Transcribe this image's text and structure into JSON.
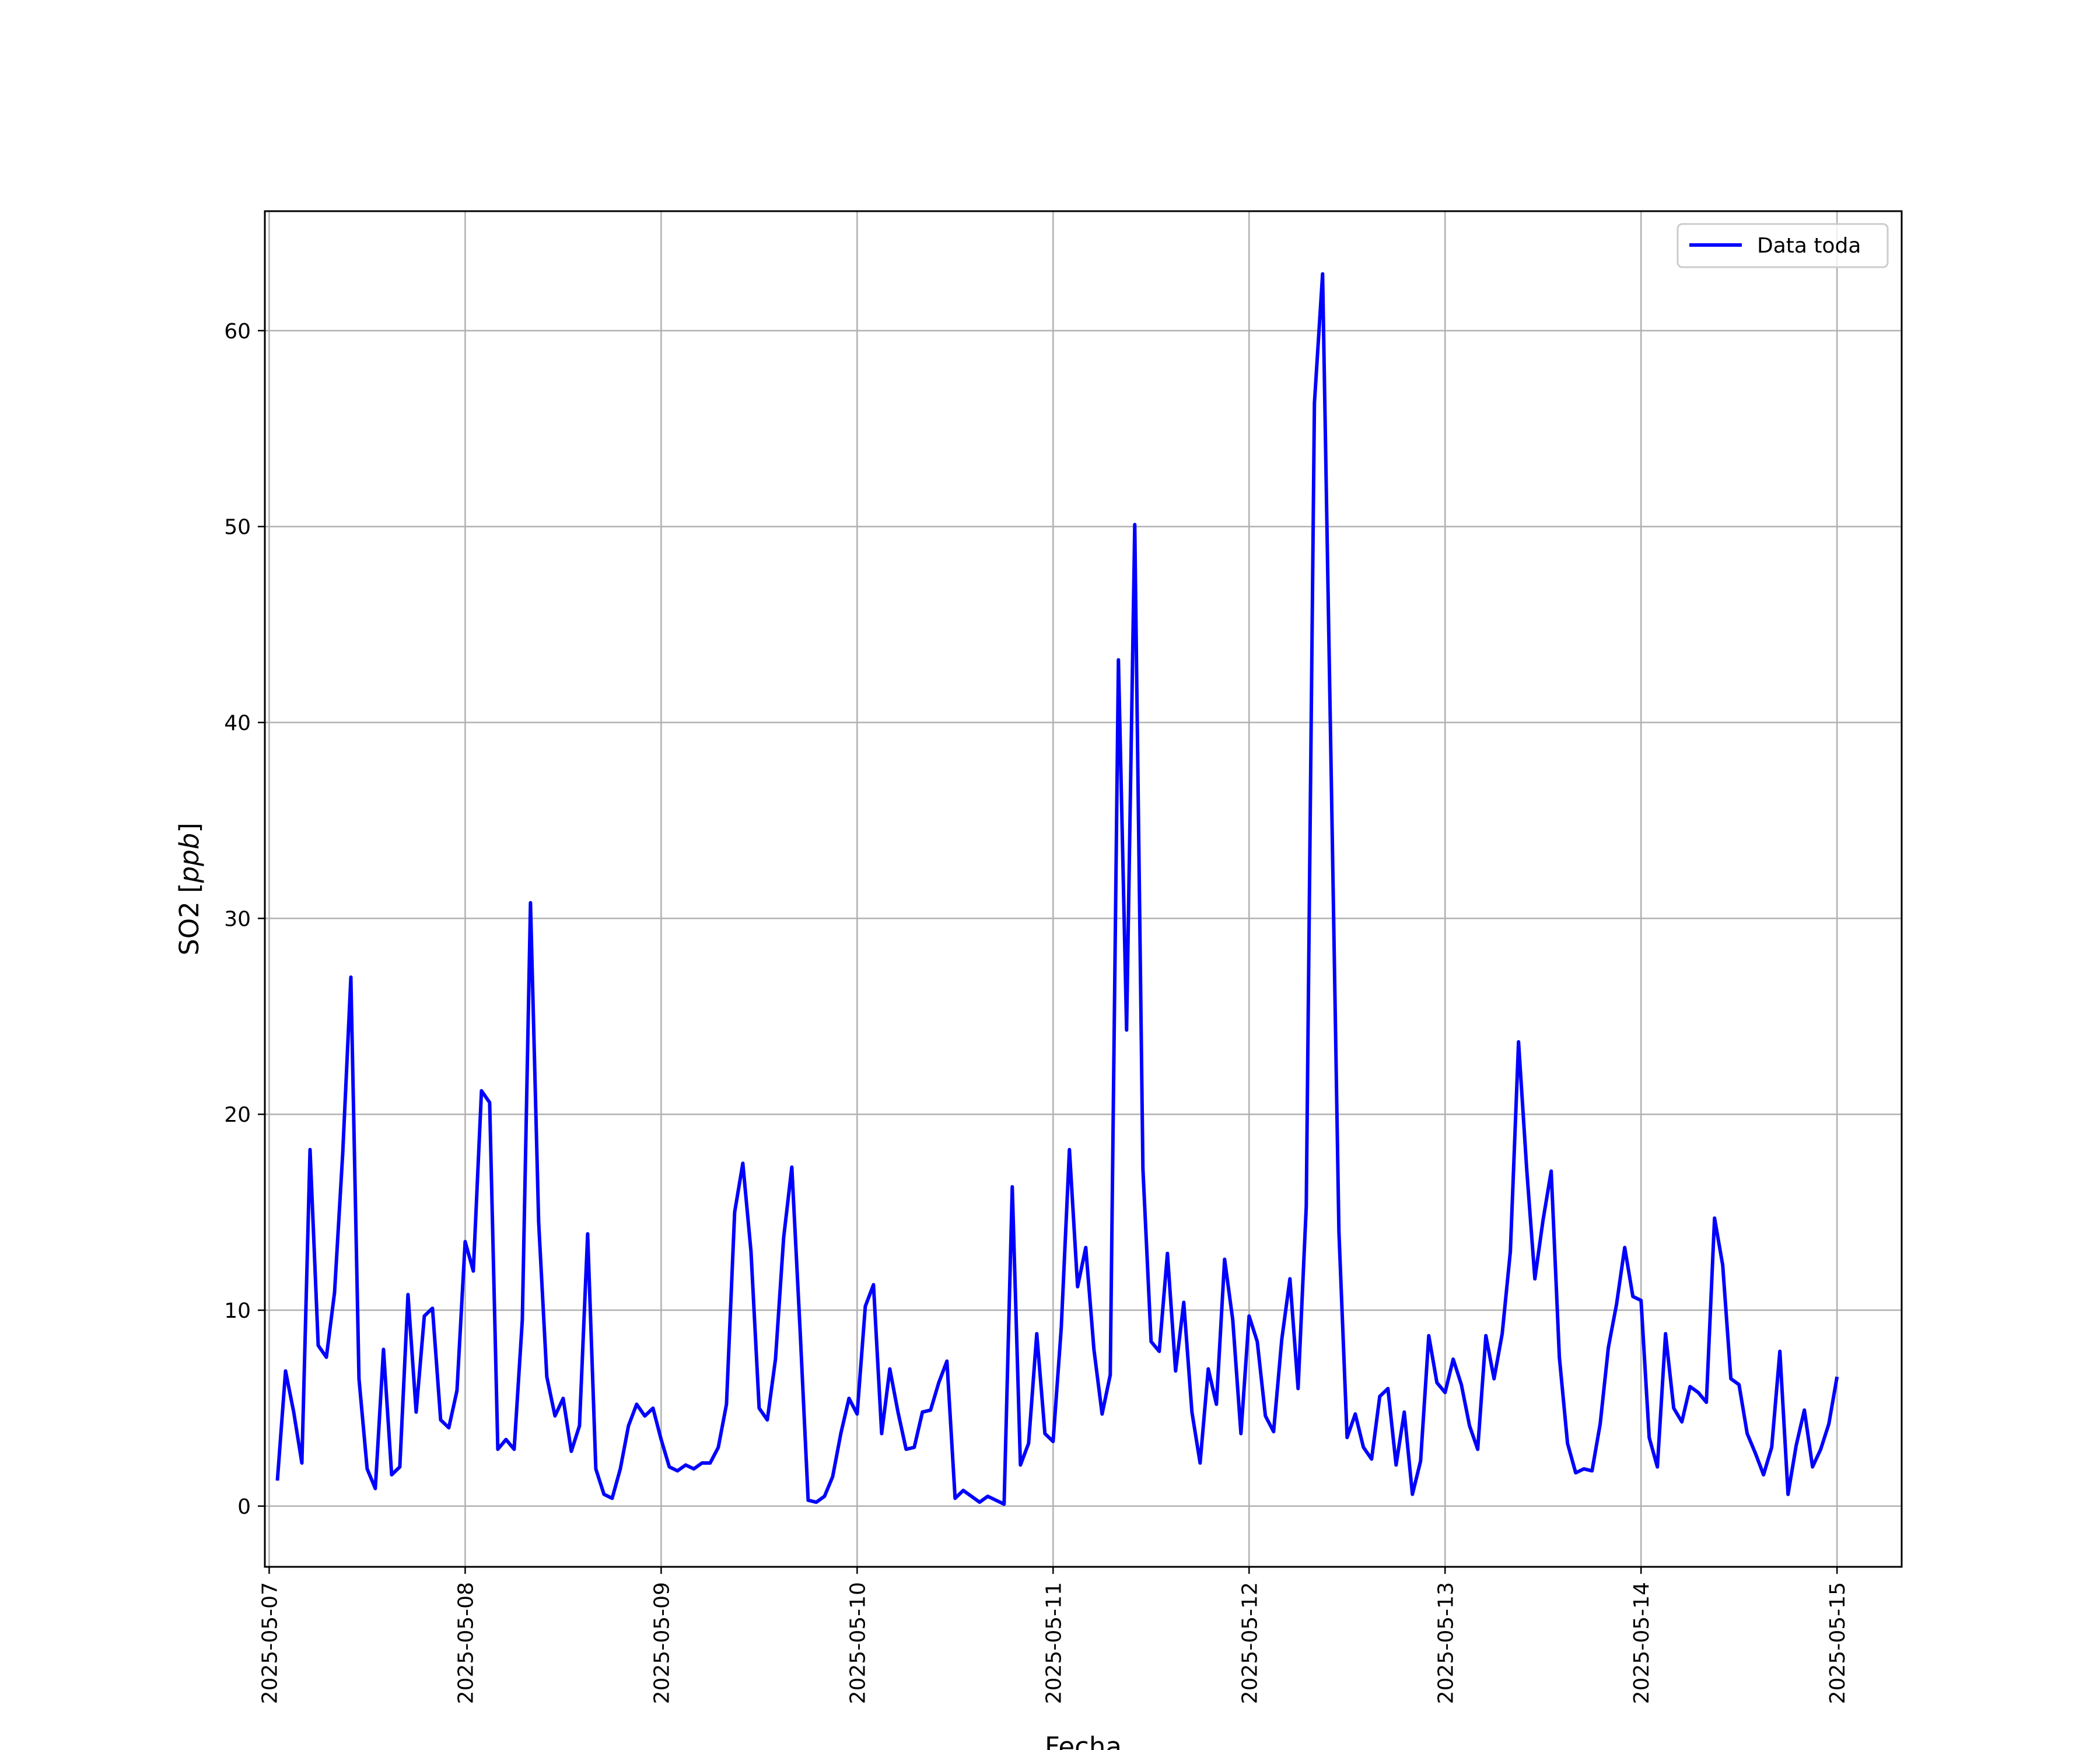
{
  "chart_data": {
    "type": "line",
    "xlabel": "Fecha",
    "ylabel": "SO2 [ppb]",
    "ylabel_parts": {
      "base": "SO2 [",
      "unit": "ppb",
      "close": "]"
    },
    "x_range": [
      "2025-05-06T23:28",
      "2025-05-15T07:55"
    ],
    "y_range": [
      -3.1,
      66.1
    ],
    "x_ticks": [
      "2025-05-07",
      "2025-05-08",
      "2025-05-09",
      "2025-05-10",
      "2025-05-11",
      "2025-05-12",
      "2025-05-13",
      "2025-05-14",
      "2025-05-15"
    ],
    "y_ticks": [
      0,
      10,
      20,
      30,
      40,
      50,
      60
    ],
    "grid": true,
    "legend_position": "upper right",
    "series": [
      {
        "name": "Data toda",
        "color": "#0000ff",
        "x": [
          "2025-05-07 01:00",
          "2025-05-07 02:00",
          "2025-05-07 03:00",
          "2025-05-07 04:00",
          "2025-05-07 05:00",
          "2025-05-07 06:00",
          "2025-05-07 07:00",
          "2025-05-07 08:00",
          "2025-05-07 09:00",
          "2025-05-07 10:00",
          "2025-05-07 11:00",
          "2025-05-07 12:00",
          "2025-05-07 13:00",
          "2025-05-07 14:00",
          "2025-05-07 15:00",
          "2025-05-07 16:00",
          "2025-05-07 17:00",
          "2025-05-07 18:00",
          "2025-05-07 19:00",
          "2025-05-07 20:00",
          "2025-05-07 21:00",
          "2025-05-07 22:00",
          "2025-05-07 23:00",
          "2025-05-08 00:00",
          "2025-05-08 01:00",
          "2025-05-08 02:00",
          "2025-05-08 03:00",
          "2025-05-08 04:00",
          "2025-05-08 05:00",
          "2025-05-08 06:00",
          "2025-05-08 07:00",
          "2025-05-08 08:00",
          "2025-05-08 09:00",
          "2025-05-08 10:00",
          "2025-05-08 11:00",
          "2025-05-08 12:00",
          "2025-05-08 13:00",
          "2025-05-08 14:00",
          "2025-05-08 15:00",
          "2025-05-08 16:00",
          "2025-05-08 17:00",
          "2025-05-08 18:00",
          "2025-05-08 19:00",
          "2025-05-08 20:00",
          "2025-05-08 21:00",
          "2025-05-08 22:00",
          "2025-05-08 23:00",
          "2025-05-09 00:00",
          "2025-05-09 01:00",
          "2025-05-09 02:00",
          "2025-05-09 03:00",
          "2025-05-09 04:00",
          "2025-05-09 05:00",
          "2025-05-09 06:00",
          "2025-05-09 07:00",
          "2025-05-09 08:00",
          "2025-05-09 09:00",
          "2025-05-09 10:00",
          "2025-05-09 11:00",
          "2025-05-09 12:00",
          "2025-05-09 13:00",
          "2025-05-09 14:00",
          "2025-05-09 15:00",
          "2025-05-09 16:00",
          "2025-05-09 17:00",
          "2025-05-09 18:00",
          "2025-05-09 19:00",
          "2025-05-09 20:00",
          "2025-05-09 21:00",
          "2025-05-09 22:00",
          "2025-05-09 23:00",
          "2025-05-10 00:00",
          "2025-05-10 01:00",
          "2025-05-10 02:00",
          "2025-05-10 03:00",
          "2025-05-10 04:00",
          "2025-05-10 05:00",
          "2025-05-10 06:00",
          "2025-05-10 07:00",
          "2025-05-10 08:00",
          "2025-05-10 09:00",
          "2025-05-10 10:00",
          "2025-05-10 11:00",
          "2025-05-10 12:00",
          "2025-05-10 13:00",
          "2025-05-10 14:00",
          "2025-05-10 15:00",
          "2025-05-10 16:00",
          "2025-05-10 17:00",
          "2025-05-10 18:00",
          "2025-05-10 19:00",
          "2025-05-10 20:00",
          "2025-05-10 21:00",
          "2025-05-10 22:00",
          "2025-05-10 23:00",
          "2025-05-11 00:00",
          "2025-05-11 01:00",
          "2025-05-11 02:00",
          "2025-05-11 03:00",
          "2025-05-11 04:00",
          "2025-05-11 05:00",
          "2025-05-11 06:00",
          "2025-05-11 07:00",
          "2025-05-11 08:00",
          "2025-05-11 09:00",
          "2025-05-11 10:00",
          "2025-05-11 11:00",
          "2025-05-11 12:00",
          "2025-05-11 13:00",
          "2025-05-11 14:00",
          "2025-05-11 15:00",
          "2025-05-11 16:00",
          "2025-05-11 17:00",
          "2025-05-11 18:00",
          "2025-05-11 19:00",
          "2025-05-11 20:00",
          "2025-05-11 21:00",
          "2025-05-11 22:00",
          "2025-05-11 23:00",
          "2025-05-12 00:00",
          "2025-05-12 01:00",
          "2025-05-12 02:00",
          "2025-05-12 03:00",
          "2025-05-12 04:00",
          "2025-05-12 05:00",
          "2025-05-12 06:00",
          "2025-05-12 07:00",
          "2025-05-12 08:00",
          "2025-05-12 09:00",
          "2025-05-12 10:00",
          "2025-05-12 11:00",
          "2025-05-12 12:00",
          "2025-05-12 13:00",
          "2025-05-12 14:00",
          "2025-05-12 15:00",
          "2025-05-12 16:00",
          "2025-05-12 17:00",
          "2025-05-12 18:00",
          "2025-05-12 19:00",
          "2025-05-12 20:00",
          "2025-05-12 21:00",
          "2025-05-12 22:00",
          "2025-05-12 23:00",
          "2025-05-13 00:00",
          "2025-05-13 01:00",
          "2025-05-13 02:00",
          "2025-05-13 03:00",
          "2025-05-13 04:00",
          "2025-05-13 05:00",
          "2025-05-13 06:00",
          "2025-05-13 07:00",
          "2025-05-13 08:00",
          "2025-05-13 09:00",
          "2025-05-13 10:00",
          "2025-05-13 11:00",
          "2025-05-13 12:00",
          "2025-05-13 13:00",
          "2025-05-13 14:00",
          "2025-05-13 15:00",
          "2025-05-13 16:00",
          "2025-05-13 17:00",
          "2025-05-13 18:00",
          "2025-05-13 19:00",
          "2025-05-13 20:00",
          "2025-05-13 21:00",
          "2025-05-13 22:00",
          "2025-05-13 23:00",
          "2025-05-14 00:00",
          "2025-05-14 01:00",
          "2025-05-14 02:00",
          "2025-05-14 03:00",
          "2025-05-14 04:00",
          "2025-05-14 05:00",
          "2025-05-14 06:00",
          "2025-05-14 07:00",
          "2025-05-14 08:00",
          "2025-05-14 09:00",
          "2025-05-14 10:00",
          "2025-05-14 11:00",
          "2025-05-14 12:00",
          "2025-05-14 13:00",
          "2025-05-14 14:00",
          "2025-05-14 15:00",
          "2025-05-14 16:00",
          "2025-05-14 17:00",
          "2025-05-14 18:00",
          "2025-05-14 19:00",
          "2025-05-14 20:00",
          "2025-05-14 21:00",
          "2025-05-14 22:00",
          "2025-05-14 23:00",
          "2025-05-15 00:00"
        ],
        "y": [
          1.3,
          6.9,
          4.8,
          2.2,
          18.2,
          8.2,
          7.6,
          10.9,
          18.0,
          27.0,
          6.5,
          1.9,
          0.9,
          8.0,
          1.6,
          2.0,
          10.8,
          4.8,
          9.7,
          10.1,
          4.4,
          4.0,
          5.9,
          13.5,
          12.0,
          21.2,
          20.6,
          2.9,
          3.4,
          2.9,
          9.5,
          30.8,
          14.5,
          6.6,
          4.6,
          5.5,
          2.8,
          4.1,
          13.9,
          1.9,
          0.6,
          0.4,
          1.9,
          4.1,
          5.2,
          4.6,
          5.0,
          3.4,
          2.0,
          1.8,
          2.1,
          1.9,
          2.2,
          2.2,
          3.0,
          5.2,
          15.0,
          17.5,
          13.0,
          5.0,
          4.4,
          7.5,
          13.7,
          17.3,
          9.1,
          0.3,
          0.2,
          0.5,
          1.5,
          3.7,
          5.5,
          4.7,
          10.2,
          11.3,
          3.7,
          7.0,
          4.8,
          2.9,
          3.0,
          4.8,
          4.9,
          6.3,
          7.4,
          0.4,
          0.8,
          0.5,
          0.2,
          0.5,
          0.3,
          0.1,
          16.3,
          2.1,
          3.2,
          8.8,
          3.7,
          3.3,
          9.1,
          18.2,
          11.2,
          13.2,
          8.0,
          4.7,
          6.7,
          43.2,
          24.3,
          50.1,
          17.2,
          8.4,
          7.9,
          12.9,
          6.9,
          10.4,
          4.8,
          2.2,
          7.0,
          5.2,
          12.6,
          9.5,
          3.7,
          9.7,
          8.4,
          4.6,
          3.8,
          8.5,
          11.6,
          6.0,
          15.3,
          56.3,
          62.9,
          38.7,
          14.0,
          3.5,
          4.7,
          3.0,
          2.4,
          5.6,
          6.0,
          2.1,
          4.8,
          0.6,
          2.3,
          8.7,
          6.3,
          5.8,
          7.5,
          6.2,
          4.1,
          2.9,
          8.7,
          6.5,
          8.8,
          13.0,
          23.7,
          17.2,
          11.6,
          14.6,
          17.1,
          7.6,
          3.2,
          1.7,
          1.9,
          1.8,
          4.2,
          8.1,
          10.3,
          13.2,
          10.7,
          10.5,
          3.5,
          2.0,
          8.8,
          5.0,
          4.3,
          6.1,
          5.8,
          5.3,
          14.7,
          12.3,
          6.5,
          6.2,
          3.7,
          2.7,
          1.6,
          3.0,
          7.9,
          0.6,
          3.1,
          4.9,
          2.0,
          2.9,
          4.2,
          6.6
        ]
      }
    ]
  }
}
